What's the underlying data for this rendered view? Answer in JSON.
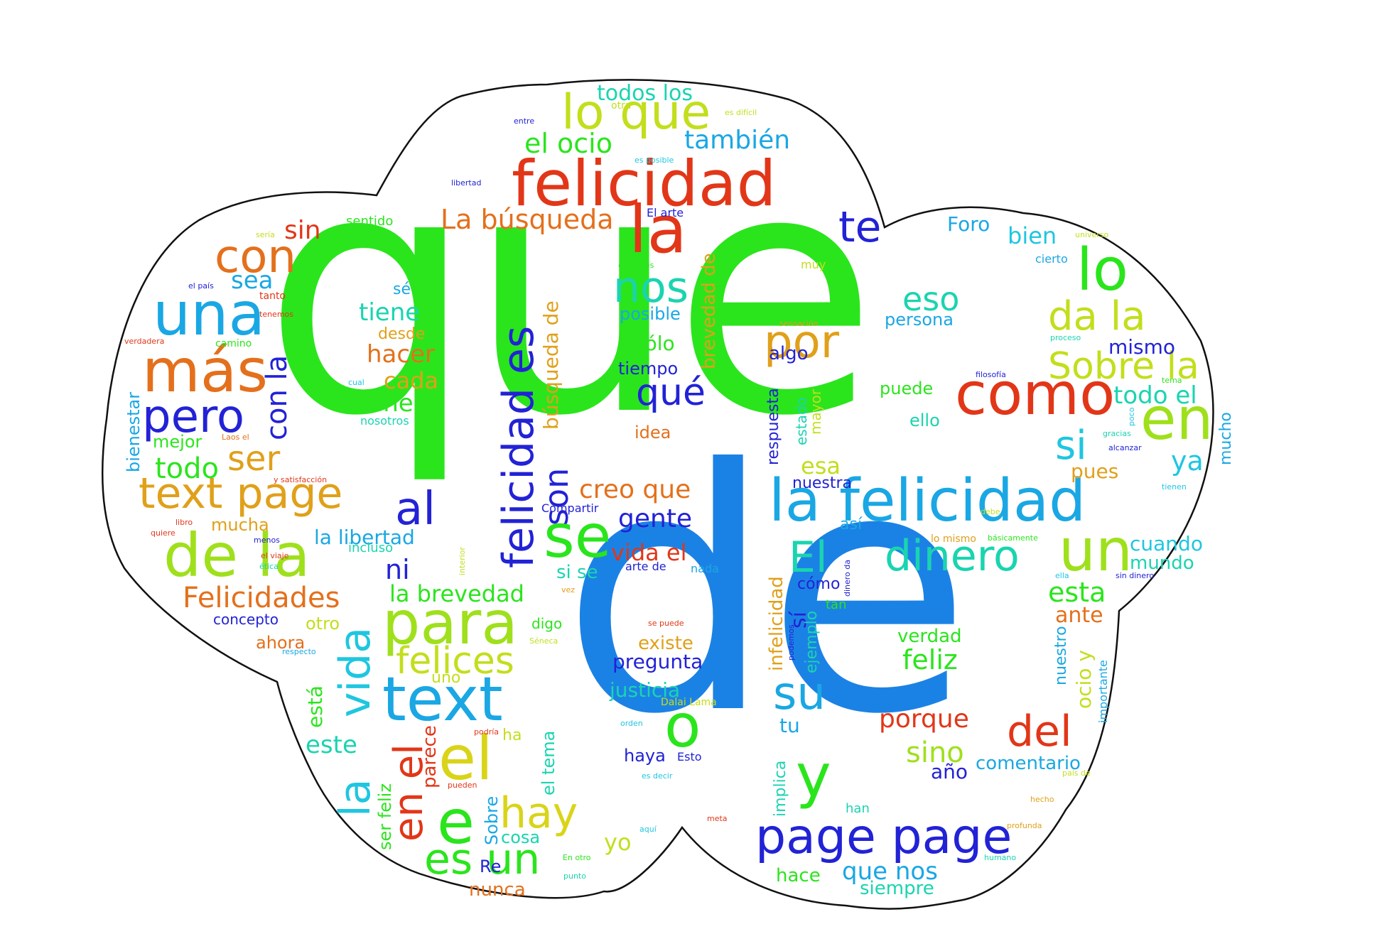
{
  "colors": {
    "green": "#2ae51c",
    "blue": "#1b82e5",
    "red": "#e23618",
    "orange": "#e4701c",
    "navy": "#2222d6",
    "lime": "#9fe01c",
    "yellow": "#d9d418",
    "cyan": "#1fc6e0",
    "teal": "#1ad4b0",
    "sky": "#1aa7e4",
    "olive": "#c3de1c",
    "amber": "#e0a01a",
    "outline": "#111111"
  },
  "words": [
    {
      "text": "que",
      "color": "green"
    },
    {
      "text": "de",
      "color": "blue"
    },
    {
      "text": "felicidad",
      "color": "red"
    },
    {
      "text": "la felicidad",
      "color": "sky"
    },
    {
      "text": "la",
      "color": "red"
    },
    {
      "text": "lo que",
      "color": "olive"
    },
    {
      "text": "como",
      "color": "red"
    },
    {
      "text": "en",
      "color": "lime"
    },
    {
      "text": "lo",
      "color": "green"
    },
    {
      "text": "una",
      "color": "sky"
    },
    {
      "text": "más",
      "color": "orange"
    },
    {
      "text": "pero",
      "color": "navy"
    },
    {
      "text": "con",
      "color": "orange"
    },
    {
      "text": "de la",
      "color": "lime"
    },
    {
      "text": "text page",
      "color": "amber"
    },
    {
      "text": "para",
      "color": "lime"
    },
    {
      "text": "se",
      "color": "green"
    },
    {
      "text": "al",
      "color": "navy"
    },
    {
      "text": "text",
      "color": "sky"
    },
    {
      "text": "el",
      "color": "yellow"
    },
    {
      "text": "e",
      "color": "green"
    },
    {
      "text": "es un",
      "color": "green"
    },
    {
      "text": "hay",
      "color": "yellow"
    },
    {
      "text": "o",
      "color": "green"
    },
    {
      "text": "y",
      "color": "green"
    },
    {
      "text": "su",
      "color": "sky"
    },
    {
      "text": "page page",
      "color": "navy"
    },
    {
      "text": "un",
      "color": "lime"
    },
    {
      "text": "dinero",
      "color": "teal"
    },
    {
      "text": "El",
      "color": "teal"
    },
    {
      "text": "del",
      "color": "red"
    },
    {
      "text": "nos",
      "color": "teal"
    },
    {
      "text": "por",
      "color": "amber"
    },
    {
      "text": "te",
      "color": "navy"
    },
    {
      "text": "eso",
      "color": "teal"
    },
    {
      "text": "da la",
      "color": "olive"
    },
    {
      "text": "Sobre la",
      "color": "olive"
    },
    {
      "text": "si",
      "color": "cyan"
    },
    {
      "text": "felicidad es",
      "color": "navy"
    },
    {
      "text": "son",
      "color": "navy"
    },
    {
      "text": "vida",
      "color": "cyan"
    },
    {
      "text": "la",
      "color": "cyan"
    },
    {
      "text": "en el",
      "color": "red"
    },
    {
      "text": "felices",
      "color": "olive"
    },
    {
      "text": "Felicidades",
      "color": "orange"
    },
    {
      "text": "qué",
      "color": "navy"
    },
    {
      "text": "también",
      "color": "sky"
    },
    {
      "text": "el ocio",
      "color": "green"
    },
    {
      "text": "todos los",
      "color": "teal"
    },
    {
      "text": "La búsqueda",
      "color": "orange"
    },
    {
      "text": "ser",
      "color": "amber"
    },
    {
      "text": "todo",
      "color": "green"
    },
    {
      "text": "sin",
      "color": "red"
    },
    {
      "text": "sea",
      "color": "sky"
    },
    {
      "text": "con la",
      "color": "navy"
    },
    {
      "text": "tiene",
      "color": "teal"
    },
    {
      "text": "hacer",
      "color": "orange"
    },
    {
      "text": "cada",
      "color": "amber"
    },
    {
      "text": "tener",
      "color": "green"
    },
    {
      "text": "creo que",
      "color": "orange"
    },
    {
      "text": "gente",
      "color": "navy"
    },
    {
      "text": "vida el",
      "color": "red"
    },
    {
      "text": "la brevedad",
      "color": "green"
    },
    {
      "text": "la libertad",
      "color": "sky"
    },
    {
      "text": "ni",
      "color": "navy"
    },
    {
      "text": "esta",
      "color": "green"
    },
    {
      "text": "ante",
      "color": "orange"
    },
    {
      "text": "feliz",
      "color": "green"
    },
    {
      "text": "verdad",
      "color": "green"
    },
    {
      "text": "porque",
      "color": "red"
    },
    {
      "text": "sino",
      "color": "lime"
    },
    {
      "text": "comentario",
      "color": "sky"
    },
    {
      "text": "año",
      "color": "navy"
    },
    {
      "text": "que nos",
      "color": "sky"
    },
    {
      "text": "siempre",
      "color": "teal"
    },
    {
      "text": "hace",
      "color": "green"
    },
    {
      "text": "todo el",
      "color": "teal"
    },
    {
      "text": "ya",
      "color": "cyan"
    },
    {
      "text": "pues",
      "color": "amber"
    },
    {
      "text": "mismo",
      "color": "navy"
    },
    {
      "text": "cuando",
      "color": "cyan"
    },
    {
      "text": "mundo",
      "color": "teal"
    },
    {
      "text": "Foro",
      "color": "sky"
    },
    {
      "text": "bien",
      "color": "cyan"
    },
    {
      "text": "persona",
      "color": "sky"
    },
    {
      "text": "puede",
      "color": "green"
    },
    {
      "text": "ello",
      "color": "teal"
    },
    {
      "text": "algo",
      "color": "navy"
    },
    {
      "text": "esa",
      "color": "olive"
    },
    {
      "text": "nuestra",
      "color": "navy"
    },
    {
      "text": "así",
      "color": "sky"
    },
    {
      "text": "cómo",
      "color": "navy"
    },
    {
      "text": "existe",
      "color": "amber"
    },
    {
      "text": "pregunta",
      "color": "navy"
    },
    {
      "text": "justicia",
      "color": "teal"
    },
    {
      "text": "haya",
      "color": "navy"
    },
    {
      "text": "idea",
      "color": "orange"
    },
    {
      "text": "tiempo",
      "color": "navy"
    },
    {
      "text": "sólo",
      "color": "green"
    },
    {
      "text": "posible",
      "color": "sky"
    },
    {
      "text": "mejor",
      "color": "green"
    },
    {
      "text": "bienestar",
      "color": "sky"
    },
    {
      "text": "mucha",
      "color": "amber"
    },
    {
      "text": "concepto",
      "color": "navy"
    },
    {
      "text": "ahora",
      "color": "orange"
    },
    {
      "text": "otro",
      "color": "olive"
    },
    {
      "text": "uno",
      "color": "olive"
    },
    {
      "text": "cosa",
      "color": "teal"
    },
    {
      "text": "nunca",
      "color": "orange"
    },
    {
      "text": "yo",
      "color": "olive"
    },
    {
      "text": "está",
      "color": "green"
    },
    {
      "text": "este",
      "color": "teal"
    },
    {
      "text": "parece",
      "color": "red"
    },
    {
      "text": "ser feliz",
      "color": "green"
    },
    {
      "text": "Sobre",
      "color": "sky"
    },
    {
      "text": "Re",
      "color": "navy"
    },
    {
      "text": "el tema",
      "color": "teal"
    },
    {
      "text": "ha",
      "color": "olive"
    },
    {
      "text": "digo",
      "color": "green"
    },
    {
      "text": "tu",
      "color": "sky"
    },
    {
      "text": "si se",
      "color": "teal"
    },
    {
      "text": "desde",
      "color": "amber"
    },
    {
      "text": "sé",
      "color": "sky"
    },
    {
      "text": "sentido",
      "color": "green"
    },
    {
      "text": "incluso",
      "color": "teal"
    },
    {
      "text": "Compartir",
      "color": "navy"
    },
    {
      "text": "arte de",
      "color": "navy"
    },
    {
      "text": "nada",
      "color": "sky"
    },
    {
      "text": "Esto",
      "color": "navy"
    },
    {
      "text": "tan",
      "color": "green"
    },
    {
      "text": "sí",
      "color": "navy"
    },
    {
      "text": "muy",
      "color": "olive"
    },
    {
      "text": "cierto",
      "color": "sky"
    },
    {
      "text": "El arte",
      "color": "navy"
    },
    {
      "text": "mucho",
      "color": "sky"
    },
    {
      "text": "nuestro",
      "color": "sky"
    },
    {
      "text": "ocio y",
      "color": "olive"
    },
    {
      "text": "importante",
      "color": "sky"
    },
    {
      "text": "implica",
      "color": "teal"
    },
    {
      "text": "respuesta",
      "color": "navy"
    },
    {
      "text": "estado",
      "color": "teal"
    },
    {
      "text": "mayor",
      "color": "olive"
    },
    {
      "text": "infelicidad",
      "color": "amber"
    },
    {
      "text": "ejemplo",
      "color": "teal"
    },
    {
      "text": "brevedad de",
      "color": "amber"
    },
    {
      "text": "búsqueda de",
      "color": "amber"
    },
    {
      "text": "han",
      "color": "teal"
    },
    {
      "text": "Dalai Lama",
      "color": "olive"
    },
    {
      "text": "nosotros",
      "color": "teal"
    },
    {
      "text": "otra",
      "color": "olive"
    },
    {
      "text": "entre",
      "color": "navy"
    },
    {
      "text": "es difícil",
      "color": "olive"
    },
    {
      "text": "es posible",
      "color": "cyan"
    },
    {
      "text": "libertad",
      "color": "navy"
    },
    {
      "text": "sería",
      "color": "olive"
    },
    {
      "text": "el país",
      "color": "navy"
    },
    {
      "text": "tanto",
      "color": "red"
    },
    {
      "text": "tenemos",
      "color": "red"
    },
    {
      "text": "verdadera",
      "color": "red"
    },
    {
      "text": "camino",
      "color": "green"
    },
    {
      "text": "cual",
      "color": "cyan"
    },
    {
      "text": "Laos el",
      "color": "orange"
    },
    {
      "text": "y satisfacción",
      "color": "red"
    },
    {
      "text": "libro",
      "color": "red"
    },
    {
      "text": "quiere",
      "color": "red"
    },
    {
      "text": "menos",
      "color": "navy"
    },
    {
      "text": "el viaje",
      "color": "red"
    },
    {
      "text": "ética",
      "color": "teal"
    },
    {
      "text": "respecto",
      "color": "sky"
    },
    {
      "text": "podría",
      "color": "red"
    },
    {
      "text": "pueden",
      "color": "red"
    },
    {
      "text": "aquí",
      "color": "cyan"
    },
    {
      "text": "En otro",
      "color": "green"
    },
    {
      "text": "punto",
      "color": "teal"
    },
    {
      "text": "meta",
      "color": "red"
    },
    {
      "text": "se puede",
      "color": "red"
    },
    {
      "text": "orden",
      "color": "cyan"
    },
    {
      "text": "es decir",
      "color": "cyan"
    },
    {
      "text": "Séneca",
      "color": "olive"
    },
    {
      "text": "vez",
      "color": "amber"
    },
    {
      "text": "interior",
      "color": "olive"
    },
    {
      "text": "entonces",
      "color": "green"
    },
    {
      "text": "sensación",
      "color": "amber"
    },
    {
      "text": "filosofía",
      "color": "navy"
    },
    {
      "text": "tema",
      "color": "green"
    },
    {
      "text": "poco",
      "color": "cyan"
    },
    {
      "text": "gracias",
      "color": "teal"
    },
    {
      "text": "alcanzar",
      "color": "navy"
    },
    {
      "text": "tienen",
      "color": "cyan"
    },
    {
      "text": "debe",
      "color": "olive"
    },
    {
      "text": "lo mismo",
      "color": "amber"
    },
    {
      "text": "básicamente",
      "color": "green"
    },
    {
      "text": "sin dinero",
      "color": "navy"
    },
    {
      "text": "ella",
      "color": "cyan"
    },
    {
      "text": "dinero da",
      "color": "navy"
    },
    {
      "text": "podemos",
      "color": "navy"
    },
    {
      "text": "hecho",
      "color": "amber"
    },
    {
      "text": "país de",
      "color": "olive"
    },
    {
      "text": "profunda",
      "color": "amber"
    },
    {
      "text": "humano",
      "color": "teal"
    },
    {
      "text": "universo",
      "color": "olive"
    },
    {
      "text": "proceso",
      "color": "teal"
    }
  ]
}
